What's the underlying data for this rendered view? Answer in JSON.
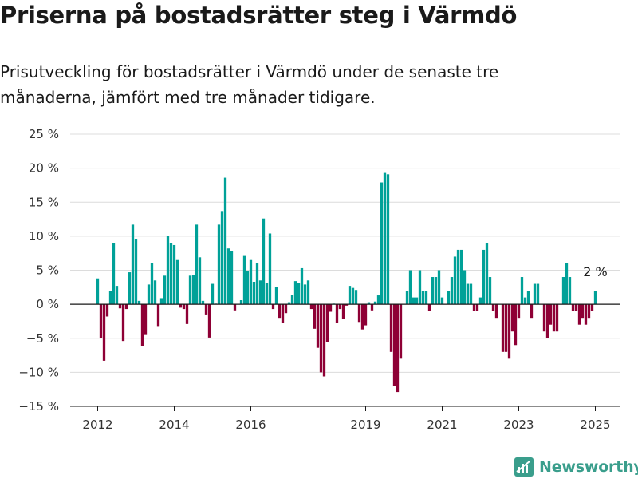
{
  "title": "Priserna på bostadsrätter steg i Värmdö",
  "subtitle": "Prisutveckling för bostadsrätter i Värmdö under de senaste tre månaderna, jämfört med tre månader tidigare.",
  "logo_text": "Newsworthy",
  "chart_data": {
    "type": "bar",
    "x_unit": "month",
    "x_start": "2012-01",
    "ylim": [
      -15,
      25
    ],
    "yticks": [
      25,
      20,
      15,
      10,
      5,
      0,
      -5,
      -10,
      -15
    ],
    "ytick_labels": [
      "25 %",
      "20 %",
      "15 %",
      "10 %",
      "5 %",
      "0 %",
      "−5 %",
      "−10 %",
      "−15 %"
    ],
    "xticks": [
      "2012",
      "2014",
      "2016",
      "2019",
      "2021",
      "2023",
      "2025"
    ],
    "grid": true,
    "positive_color": "#00a198",
    "negative_color": "#8e0035",
    "annotation": {
      "text": "2 %",
      "month": "2025-01"
    },
    "values": [
      3.8,
      -5.0,
      -8.3,
      -1.8,
      2.0,
      9.0,
      2.7,
      -0.6,
      -5.4,
      -0.7,
      4.7,
      11.7,
      9.6,
      0.5,
      -6.2,
      -4.4,
      2.9,
      6.0,
      3.5,
      -3.2,
      0.9,
      4.2,
      10.1,
      9.0,
      8.7,
      6.5,
      -0.5,
      -0.7,
      -2.9,
      4.2,
      4.3,
      11.7,
      6.9,
      0.5,
      -1.5,
      -4.9,
      3.0,
      0.1,
      11.7,
      13.7,
      18.6,
      8.2,
      7.8,
      -0.9,
      0.0,
      0.6,
      7.1,
      4.9,
      6.5,
      3.3,
      6.0,
      3.5,
      12.6,
      3.1,
      10.4,
      -0.7,
      2.5,
      -2.0,
      -2.7,
      -1.3,
      0.3,
      1.4,
      3.4,
      3.1,
      5.3,
      2.9,
      3.5,
      -0.7,
      -3.6,
      -6.4,
      -10.0,
      -10.6,
      -5.6,
      -1.1,
      0.1,
      -2.7,
      -0.7,
      -2.2,
      -0.2,
      2.7,
      2.4,
      2.1,
      -2.6,
      -3.7,
      -3.1,
      0.3,
      -0.9,
      0.4,
      1.3,
      17.9,
      19.3,
      19.1,
      -7.0,
      -12.0,
      -12.9,
      -8.0,
      0.0,
      2.0,
      5.0,
      1.0,
      1.0,
      5.0,
      2.0,
      2.0,
      -1.0,
      4.0,
      4.0,
      5.0,
      1.0,
      0.0,
      2.0,
      4.0,
      7.0,
      8.0,
      8.0,
      5.0,
      3.0,
      3.0,
      -1.0,
      -1.0,
      1.0,
      8.0,
      9.0,
      4.0,
      -1.0,
      -2.0,
      0.0,
      -7.0,
      -7.0,
      -8.0,
      -4.0,
      -6.0,
      -2.0,
      4.0,
      1.0,
      2.0,
      -2.0,
      3.0,
      3.0,
      0.0,
      -4.0,
      -5.0,
      -3.0,
      -4.0,
      -4.0,
      0.0,
      4.0,
      6.0,
      4.0,
      -1.0,
      -1.0,
      -3.0,
      -2.0,
      -3.0,
      -2.0,
      -1.0,
      2.0
    ]
  }
}
